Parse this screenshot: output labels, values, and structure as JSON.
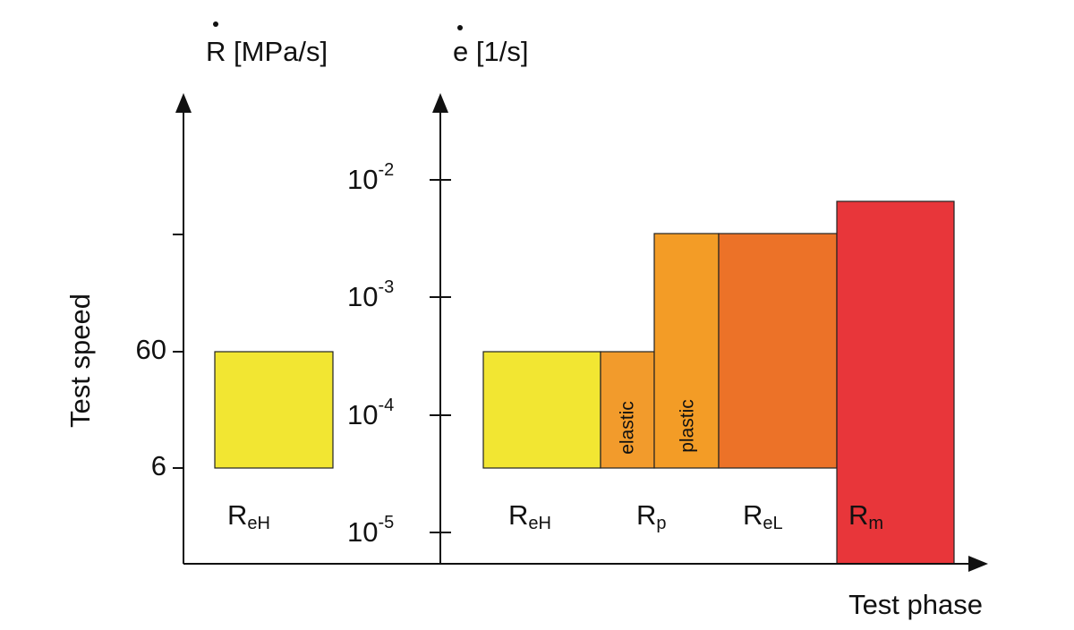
{
  "left_axis": {
    "symbol": "R",
    "unit": "[MPa/s]",
    "ticks": [
      "60",
      "6"
    ]
  },
  "right_axis": {
    "symbol": "e",
    "unit": "[1/s]",
    "ticks": [
      {
        "base": "10",
        "exp": "-2"
      },
      {
        "base": "10",
        "exp": "-3"
      },
      {
        "base": "10",
        "exp": "-4"
      },
      {
        "base": "10",
        "exp": "-5"
      }
    ]
  },
  "y_label": "Test speed",
  "x_label": "Test phase",
  "phases": [
    {
      "symbol": "R",
      "sub": "eH"
    },
    {
      "symbol": "R",
      "sub": "eH"
    },
    {
      "symbol": "R",
      "sub": "p"
    },
    {
      "symbol": "R",
      "sub": "eL"
    },
    {
      "symbol": "R",
      "sub": "m"
    }
  ],
  "stages": [
    "elastic",
    "plastic"
  ]
}
